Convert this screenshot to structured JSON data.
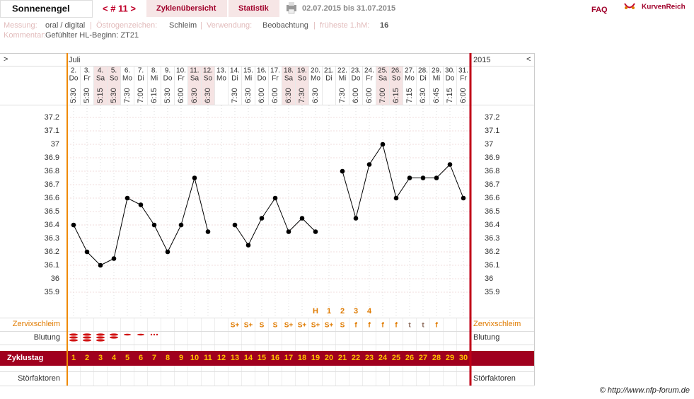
{
  "header": {
    "user": "Sonnenengel",
    "cycle_nav": "< # 11 >",
    "tabs": [
      "Zyklenübersicht",
      "Statistik"
    ],
    "date_range": "02.07.2015 bis 31.07.2015",
    "faq": "FAQ",
    "logo": "KurvenReich"
  },
  "info": {
    "separator": "|",
    "fields": [
      {
        "label": "Messung:",
        "value": "oral / digital"
      },
      {
        "label": "Östrogenzeichen:",
        "value": "Schleim"
      },
      {
        "label": "Verwendung:",
        "value": "Beobachtung"
      },
      {
        "label": "früheste 1.hM:",
        "value": "16"
      }
    ],
    "comment_label": "Kommentar:",
    "comment": "Gefühlter HL-Beginn: ZT21"
  },
  "chart_data": {
    "type": "line",
    "nav_prev": ">",
    "nav_next": "<",
    "month": "Juli",
    "year": "2015",
    "dates": [
      "2.",
      "3.",
      "4.",
      "5.",
      "6.",
      "7.",
      "8.",
      "9.",
      "10.",
      "11.",
      "12.",
      "13.",
      "14.",
      "15.",
      "16.",
      "17.",
      "18.",
      "19.",
      "20.",
      "21.",
      "22.",
      "23.",
      "24.",
      "25.",
      "26.",
      "27.",
      "28.",
      "29.",
      "30.",
      "31."
    ],
    "weekdays": [
      "Do",
      "Fr",
      "Sa",
      "So",
      "Mo",
      "Di",
      "Mi",
      "Do",
      "Fr",
      "Sa",
      "So",
      "Mo",
      "Di",
      "Mi",
      "Do",
      "Fr",
      "Sa",
      "So",
      "Mo",
      "Di",
      "Mi",
      "Do",
      "Fr",
      "Sa",
      "So",
      "Mo",
      "Di",
      "Mi",
      "Do",
      "Fr"
    ],
    "times": [
      "5:30",
      "5:30",
      "5:15",
      "5:30",
      "7:30",
      "7:00",
      "6:15",
      "5:30",
      "6:00",
      "6:30",
      "6:30",
      null,
      "7:30",
      "6:30",
      "6:00",
      "6:00",
      "6:30",
      "7:30",
      "6:30",
      null,
      "7:30",
      "6:00",
      "6:00",
      "7:00",
      "6:15",
      "7:15",
      "6:30",
      "6:45",
      "7:15",
      "6:00"
    ],
    "values": [
      36.4,
      36.2,
      36.1,
      36.15,
      36.6,
      36.55,
      36.4,
      36.2,
      36.4,
      36.75,
      36.35,
      null,
      36.4,
      36.25,
      36.45,
      36.6,
      36.35,
      36.45,
      36.35,
      null,
      36.8,
      36.45,
      36.85,
      37.0,
      36.6,
      36.75,
      36.75,
      36.75,
      36.85,
      36.6
    ],
    "color": "#000000",
    "ylim": [
      35.7,
      37.3
    ],
    "yticks": [
      35.9,
      36,
      36.1,
      36.2,
      36.3,
      36.4,
      36.5,
      36.6,
      36.7,
      36.8,
      36.9,
      37,
      37.1,
      37.2
    ],
    "grid": true,
    "peak_labels": [
      null,
      null,
      null,
      null,
      null,
      null,
      null,
      null,
      null,
      null,
      null,
      null,
      null,
      null,
      null,
      null,
      null,
      null,
      "H",
      "1",
      "2",
      "3",
      "4",
      null,
      null,
      null,
      null,
      null,
      null,
      null
    ],
    "mucus": [
      null,
      null,
      null,
      null,
      null,
      null,
      null,
      null,
      null,
      null,
      null,
      null,
      "S+",
      "S+",
      "S",
      "S",
      "S+",
      "S+",
      "S+",
      "S+",
      "S",
      "f",
      "f",
      "f",
      "f",
      "t",
      "t",
      "f",
      null,
      null
    ],
    "mucus_colors": [
      null,
      null,
      null,
      null,
      null,
      null,
      null,
      null,
      null,
      null,
      null,
      null,
      "#e07b00",
      "#e07b00",
      "#e07b00",
      "#e07b00",
      "#e07b00",
      "#e07b00",
      "#e07b00",
      "#e07b00",
      "#e07b00",
      "#e07b00",
      "#e07b00",
      "#e07b00",
      "#e07b00",
      "#8a6a5a",
      "#8a6a5a",
      "#e07b00",
      null,
      null
    ],
    "cycle_days": [
      1,
      2,
      3,
      4,
      5,
      6,
      7,
      8,
      9,
      10,
      11,
      12,
      13,
      14,
      15,
      16,
      17,
      18,
      19,
      20,
      21,
      22,
      23,
      24,
      25,
      26,
      27,
      28,
      29,
      30
    ],
    "row_labels": {
      "mucus": "Zervixschleim",
      "bleeding": "Blutung",
      "cycle_day": "Zyklustag",
      "disturbances": "Störfaktoren"
    }
  },
  "footer": "© http://www.nfp-forum.de"
}
